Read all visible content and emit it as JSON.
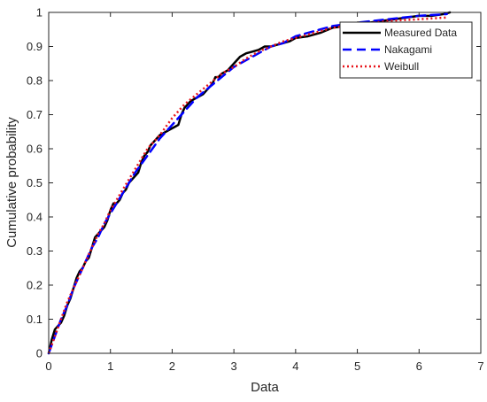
{
  "chart_data": {
    "type": "line",
    "title": "",
    "xlabel": "Data",
    "ylabel": "Cumulative probability",
    "xlim": [
      0,
      7
    ],
    "ylim": [
      0,
      1
    ],
    "x_ticks": [
      "0",
      "1",
      "2",
      "3",
      "4",
      "5",
      "6",
      "7"
    ],
    "y_ticks": [
      "0",
      "0.1",
      "0.2",
      "0.3",
      "0.4",
      "0.5",
      "0.6",
      "0.7",
      "0.8",
      "0.9",
      "1"
    ],
    "grid": false,
    "legend_position": "top-right",
    "series": [
      {
        "name": "Measured Data",
        "color": "#000000",
        "style": "solid",
        "points": [
          [
            0.0,
            0.0
          ],
          [
            0.05,
            0.04
          ],
          [
            0.1,
            0.07
          ],
          [
            0.15,
            0.08
          ],
          [
            0.2,
            0.09
          ],
          [
            0.25,
            0.11
          ],
          [
            0.3,
            0.14
          ],
          [
            0.35,
            0.16
          ],
          [
            0.4,
            0.19
          ],
          [
            0.45,
            0.22
          ],
          [
            0.5,
            0.24
          ],
          [
            0.55,
            0.25
          ],
          [
            0.6,
            0.27
          ],
          [
            0.65,
            0.28
          ],
          [
            0.7,
            0.31
          ],
          [
            0.75,
            0.34
          ],
          [
            0.8,
            0.35
          ],
          [
            0.85,
            0.36
          ],
          [
            0.9,
            0.37
          ],
          [
            0.95,
            0.39
          ],
          [
            1.0,
            0.42
          ],
          [
            1.05,
            0.44
          ],
          [
            1.1,
            0.44
          ],
          [
            1.15,
            0.45
          ],
          [
            1.2,
            0.47
          ],
          [
            1.25,
            0.48
          ],
          [
            1.3,
            0.5
          ],
          [
            1.35,
            0.51
          ],
          [
            1.4,
            0.52
          ],
          [
            1.45,
            0.53
          ],
          [
            1.5,
            0.56
          ],
          [
            1.55,
            0.58
          ],
          [
            1.6,
            0.59
          ],
          [
            1.65,
            0.61
          ],
          [
            1.7,
            0.62
          ],
          [
            1.75,
            0.63
          ],
          [
            1.8,
            0.64
          ],
          [
            1.85,
            0.645
          ],
          [
            1.9,
            0.65
          ],
          [
            1.95,
            0.655
          ],
          [
            2.0,
            0.66
          ],
          [
            2.05,
            0.665
          ],
          [
            2.1,
            0.67
          ],
          [
            2.15,
            0.7
          ],
          [
            2.2,
            0.72
          ],
          [
            2.25,
            0.73
          ],
          [
            2.3,
            0.74
          ],
          [
            2.35,
            0.745
          ],
          [
            2.4,
            0.75
          ],
          [
            2.5,
            0.76
          ],
          [
            2.55,
            0.77
          ],
          [
            2.6,
            0.78
          ],
          [
            2.65,
            0.79
          ],
          [
            2.7,
            0.81
          ],
          [
            2.75,
            0.81
          ],
          [
            2.8,
            0.82
          ],
          [
            2.85,
            0.825
          ],
          [
            2.9,
            0.83
          ],
          [
            2.95,
            0.84
          ],
          [
            3.0,
            0.85
          ],
          [
            3.05,
            0.86
          ],
          [
            3.1,
            0.87
          ],
          [
            3.15,
            0.875
          ],
          [
            3.2,
            0.88
          ],
          [
            3.3,
            0.885
          ],
          [
            3.4,
            0.89
          ],
          [
            3.5,
            0.9
          ],
          [
            3.6,
            0.9
          ],
          [
            3.7,
            0.905
          ],
          [
            3.8,
            0.91
          ],
          [
            3.9,
            0.915
          ],
          [
            4.0,
            0.925
          ],
          [
            4.2,
            0.93
          ],
          [
            4.4,
            0.94
          ],
          [
            4.6,
            0.955
          ],
          [
            4.8,
            0.96
          ],
          [
            5.0,
            0.97
          ],
          [
            5.2,
            0.97
          ],
          [
            5.4,
            0.975
          ],
          [
            5.6,
            0.98
          ],
          [
            5.8,
            0.985
          ],
          [
            6.0,
            0.99
          ],
          [
            6.2,
            0.99
          ],
          [
            6.4,
            0.995
          ],
          [
            6.5,
            1.0
          ]
        ]
      },
      {
        "name": "Nakagami",
        "color": "#0000ff",
        "style": "dashed",
        "points": [
          [
            0.0,
            0.0
          ],
          [
            0.1,
            0.05
          ],
          [
            0.2,
            0.1
          ],
          [
            0.3,
            0.14
          ],
          [
            0.4,
            0.19
          ],
          [
            0.5,
            0.23
          ],
          [
            0.6,
            0.27
          ],
          [
            0.7,
            0.31
          ],
          [
            0.8,
            0.34
          ],
          [
            0.9,
            0.38
          ],
          [
            1.0,
            0.41
          ],
          [
            1.2,
            0.47
          ],
          [
            1.4,
            0.53
          ],
          [
            1.6,
            0.58
          ],
          [
            1.8,
            0.63
          ],
          [
            2.0,
            0.67
          ],
          [
            2.2,
            0.71
          ],
          [
            2.4,
            0.75
          ],
          [
            2.6,
            0.78
          ],
          [
            2.8,
            0.81
          ],
          [
            3.0,
            0.84
          ],
          [
            3.2,
            0.86
          ],
          [
            3.4,
            0.88
          ],
          [
            3.6,
            0.9
          ],
          [
            3.8,
            0.91
          ],
          [
            4.0,
            0.93
          ],
          [
            4.2,
            0.94
          ],
          [
            4.4,
            0.95
          ],
          [
            4.6,
            0.96
          ],
          [
            4.8,
            0.965
          ],
          [
            5.0,
            0.97
          ],
          [
            5.5,
            0.98
          ],
          [
            6.0,
            0.99
          ],
          [
            6.45,
            0.995
          ]
        ]
      },
      {
        "name": "Weibull",
        "color": "#e8141a",
        "style": "dotted",
        "points": [
          [
            0.0,
            0.0
          ],
          [
            0.1,
            0.05
          ],
          [
            0.2,
            0.1
          ],
          [
            0.3,
            0.15
          ],
          [
            0.4,
            0.19
          ],
          [
            0.5,
            0.23
          ],
          [
            0.6,
            0.27
          ],
          [
            0.7,
            0.31
          ],
          [
            0.8,
            0.35
          ],
          [
            0.9,
            0.38
          ],
          [
            1.0,
            0.42
          ],
          [
            1.2,
            0.48
          ],
          [
            1.4,
            0.54
          ],
          [
            1.6,
            0.6
          ],
          [
            1.8,
            0.64
          ],
          [
            2.0,
            0.69
          ],
          [
            2.2,
            0.73
          ],
          [
            2.4,
            0.76
          ],
          [
            2.6,
            0.79
          ],
          [
            2.8,
            0.82
          ],
          [
            3.0,
            0.84
          ],
          [
            3.2,
            0.865
          ],
          [
            3.4,
            0.885
          ],
          [
            3.6,
            0.9
          ],
          [
            3.8,
            0.915
          ],
          [
            4.0,
            0.925
          ],
          [
            4.2,
            0.935
          ],
          [
            4.4,
            0.945
          ],
          [
            4.6,
            0.955
          ],
          [
            4.8,
            0.96
          ],
          [
            5.0,
            0.965
          ],
          [
            5.5,
            0.975
          ],
          [
            6.0,
            0.98
          ],
          [
            6.45,
            0.985
          ]
        ]
      }
    ]
  }
}
